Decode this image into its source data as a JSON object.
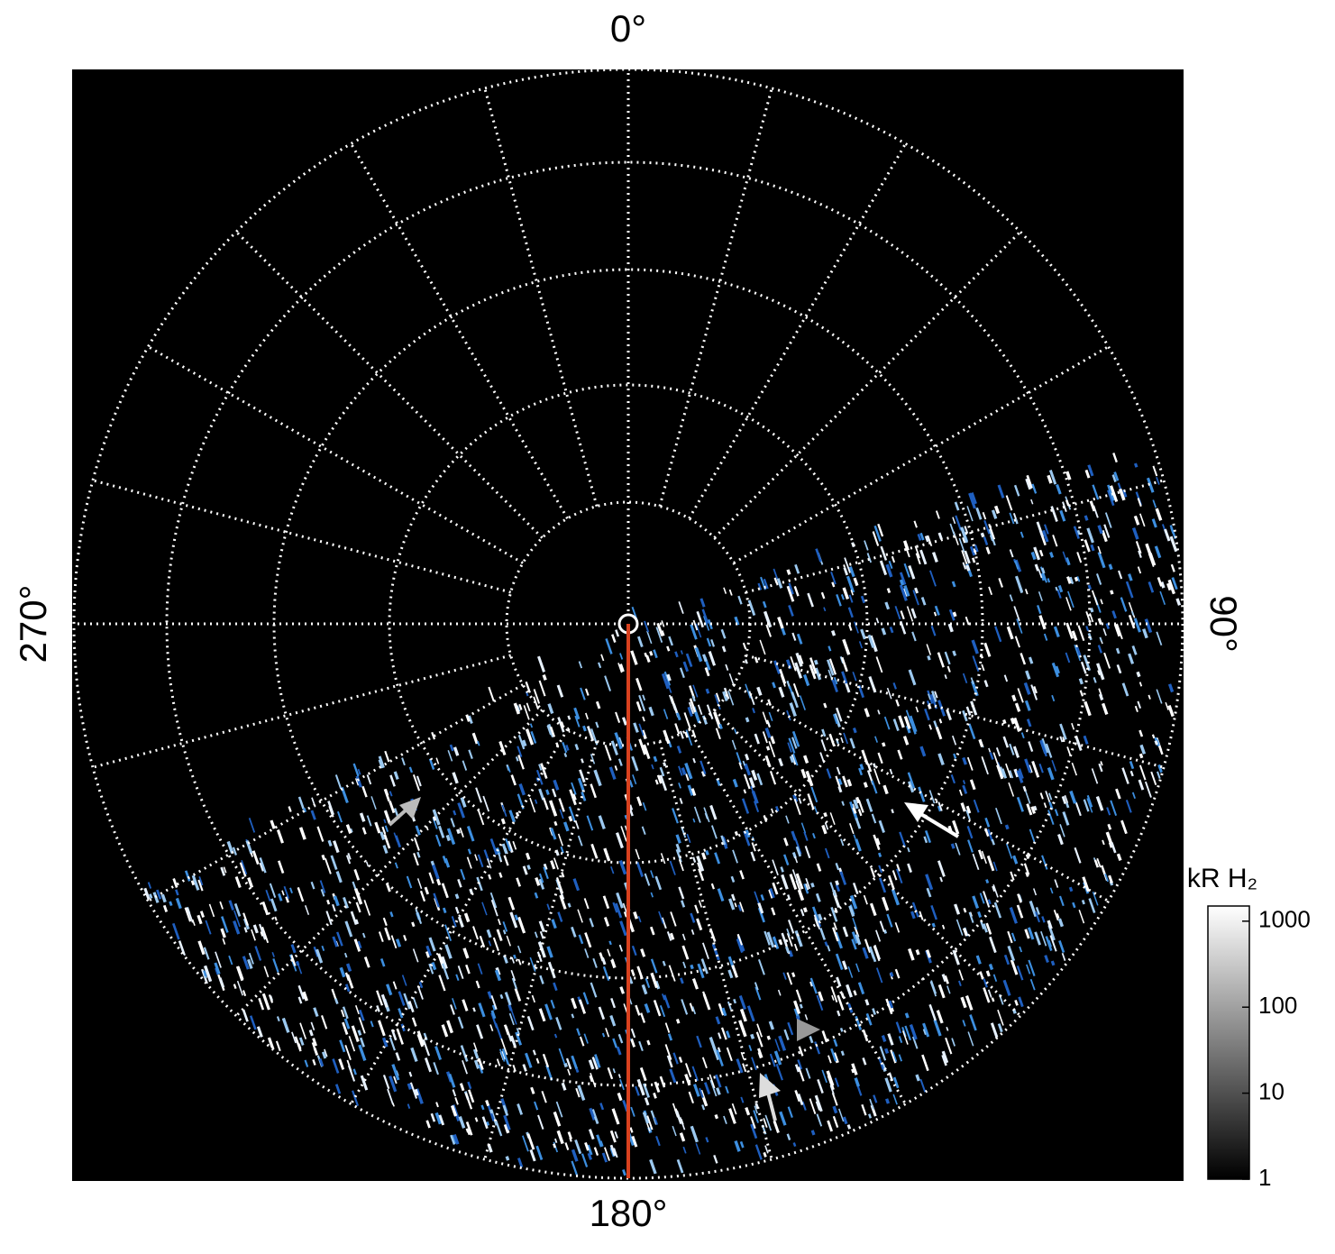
{
  "chart_data": {
    "type": "polar_image",
    "angle_ticks": [
      {
        "value": 0,
        "label": "0°"
      },
      {
        "value": 90,
        "label": "90°"
      },
      {
        "value": 180,
        "label": "180°"
      },
      {
        "value": 270,
        "label": "270°"
      }
    ],
    "colorbar": {
      "title": "kR H₂",
      "lim": [
        1,
        1500
      ],
      "ticks": [
        1,
        10,
        100,
        1000
      ],
      "log": true
    },
    "line_color": "#d9411e"
  }
}
